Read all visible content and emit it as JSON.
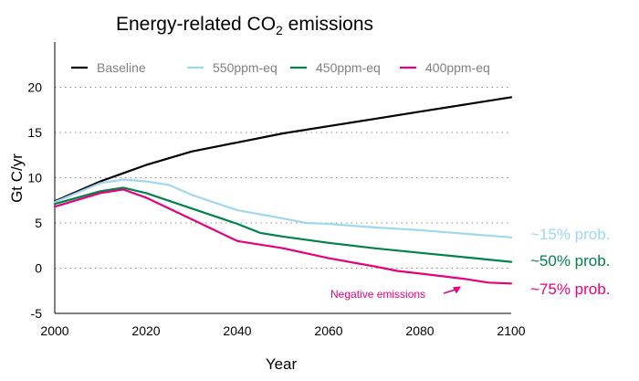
{
  "chart_data": {
    "type": "line",
    "title": "Energy-related CO",
    "title_subscript": "2",
    "title_suffix": " emissions",
    "xlabel": "Year",
    "ylabel": "Gt C/yr",
    "xlim": [
      2000,
      2100
    ],
    "ylim": [
      -5,
      25
    ],
    "xticks": [
      2000,
      2020,
      2040,
      2060,
      2080,
      2100
    ],
    "yticks": [
      -5,
      0,
      5,
      10,
      15,
      20
    ],
    "grid": "horizontal dotted",
    "legend_position": "top",
    "series": [
      {
        "name": "Baseline",
        "color": "#000000",
        "points": [
          [
            2000,
            7.4
          ],
          [
            2010,
            9.6
          ],
          [
            2020,
            11.4
          ],
          [
            2030,
            12.9
          ],
          [
            2040,
            13.9
          ],
          [
            2050,
            14.9
          ],
          [
            2060,
            15.7
          ],
          [
            2070,
            16.5
          ],
          [
            2080,
            17.3
          ],
          [
            2090,
            18.1
          ],
          [
            2100,
            18.9
          ]
        ]
      },
      {
        "name": "550ppm-eq",
        "color": "#9fd6f0",
        "points": [
          [
            2000,
            7.3
          ],
          [
            2010,
            9.4
          ],
          [
            2015,
            9.8
          ],
          [
            2020,
            9.6
          ],
          [
            2025,
            9.2
          ],
          [
            2030,
            8.1
          ],
          [
            2040,
            6.4
          ],
          [
            2050,
            5.5
          ],
          [
            2055,
            5.0
          ],
          [
            2060,
            4.9
          ],
          [
            2070,
            4.5
          ],
          [
            2080,
            4.2
          ],
          [
            2090,
            3.8
          ],
          [
            2100,
            3.4
          ]
        ]
      },
      {
        "name": "450ppm-eq",
        "color": "#008349",
        "points": [
          [
            2000,
            7.1
          ],
          [
            2010,
            8.5
          ],
          [
            2015,
            8.9
          ],
          [
            2020,
            8.3
          ],
          [
            2030,
            6.6
          ],
          [
            2040,
            4.9
          ],
          [
            2045,
            3.9
          ],
          [
            2050,
            3.5
          ],
          [
            2060,
            2.8
          ],
          [
            2070,
            2.2
          ],
          [
            2080,
            1.7
          ],
          [
            2090,
            1.2
          ],
          [
            2100,
            0.7
          ]
        ]
      },
      {
        "name": "400ppm-eq",
        "color": "#e6007e",
        "points": [
          [
            2000,
            6.8
          ],
          [
            2010,
            8.3
          ],
          [
            2015,
            8.7
          ],
          [
            2020,
            7.8
          ],
          [
            2030,
            5.4
          ],
          [
            2040,
            3.0
          ],
          [
            2050,
            2.2
          ],
          [
            2060,
            1.1
          ],
          [
            2070,
            0.2
          ],
          [
            2075,
            -0.3
          ],
          [
            2080,
            -0.6
          ],
          [
            2090,
            -1.2
          ],
          [
            2095,
            -1.6
          ],
          [
            2100,
            -1.7
          ]
        ]
      }
    ],
    "side_labels": [
      {
        "text": "~15% prob.",
        "color": "#9fd6f0"
      },
      {
        "text": "~50% prob.",
        "color": "#008349"
      },
      {
        "text": "~75% prob.",
        "color": "#e6007e"
      }
    ],
    "annotation": {
      "text": "Negative emissions",
      "color": "#e6007e",
      "arrow_target": [
        2089,
        -1.4
      ]
    }
  }
}
